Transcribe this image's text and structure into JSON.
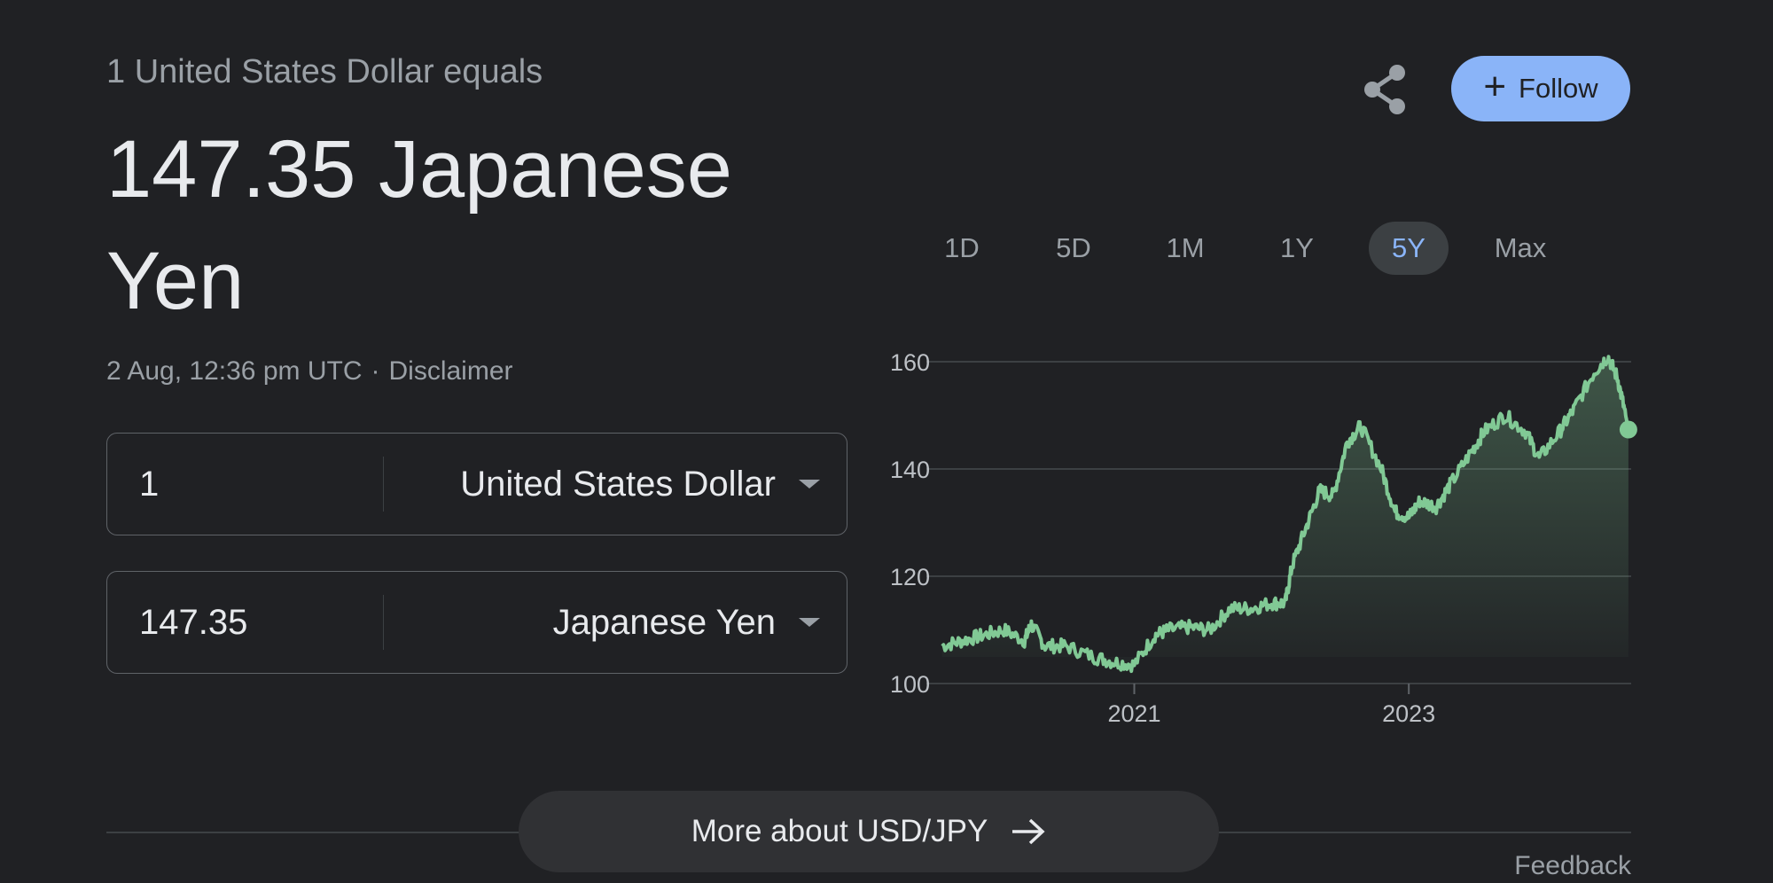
{
  "header": {
    "subtitle": "1 United States Dollar equals",
    "rate_text": "147.35 Japanese Yen",
    "timestamp": "2 Aug, 12:36 pm UTC",
    "separator": "·",
    "disclaimer": "Disclaimer"
  },
  "actions": {
    "share_icon": "share-icon",
    "follow_label": "Follow",
    "follow_icon": "+"
  },
  "converter": {
    "from_amount": "1",
    "from_currency": "United States Dollar",
    "to_amount": "147.35",
    "to_currency": "Japanese Yen"
  },
  "ranges": {
    "tabs": [
      "1D",
      "5D",
      "1M",
      "1Y",
      "5Y",
      "Max"
    ],
    "active": "5Y"
  },
  "colors": {
    "line": "#81c995",
    "accent": "#8ab4f8",
    "background": "#202124"
  },
  "chart_data": {
    "type": "area",
    "x": [
      2019.6,
      2019.75,
      2019.9,
      2020.05,
      2020.2,
      2020.25,
      2020.35,
      2020.5,
      2020.7,
      2020.85,
      2021.0,
      2021.15,
      2021.25,
      2021.4,
      2021.55,
      2021.7,
      2021.85,
      2022.0,
      2022.1,
      2022.15,
      2022.25,
      2022.35,
      2022.45,
      2022.55,
      2022.65,
      2022.8,
      2022.9,
      2023.0,
      2023.08,
      2023.2,
      2023.3,
      2023.45,
      2023.55,
      2023.7,
      2023.85,
      2023.95,
      2024.1,
      2024.2,
      2024.35,
      2024.45,
      2024.52,
      2024.58,
      2024.6
    ],
    "y": [
      107,
      108,
      109,
      110,
      108,
      111,
      107,
      107,
      105,
      104,
      103.5,
      109,
      110,
      110.5,
      110,
      114,
      114,
      115,
      115,
      122,
      129,
      136,
      135,
      145,
      148,
      140,
      132,
      131,
      134,
      133,
      137,
      143,
      147,
      150,
      147,
      142,
      147,
      151,
      158,
      161,
      157,
      150,
      147.35
    ],
    "xticks": [
      "2021",
      "2023"
    ],
    "xtick_values": [
      2021,
      2023
    ],
    "yticks": [
      100,
      120,
      140,
      160
    ],
    "xlim": [
      2019.55,
      2024.62
    ],
    "ylim": [
      100,
      160
    ],
    "grid": true
  },
  "footer": {
    "more_label": "More about USD/JPY",
    "feedback": "Feedback"
  }
}
